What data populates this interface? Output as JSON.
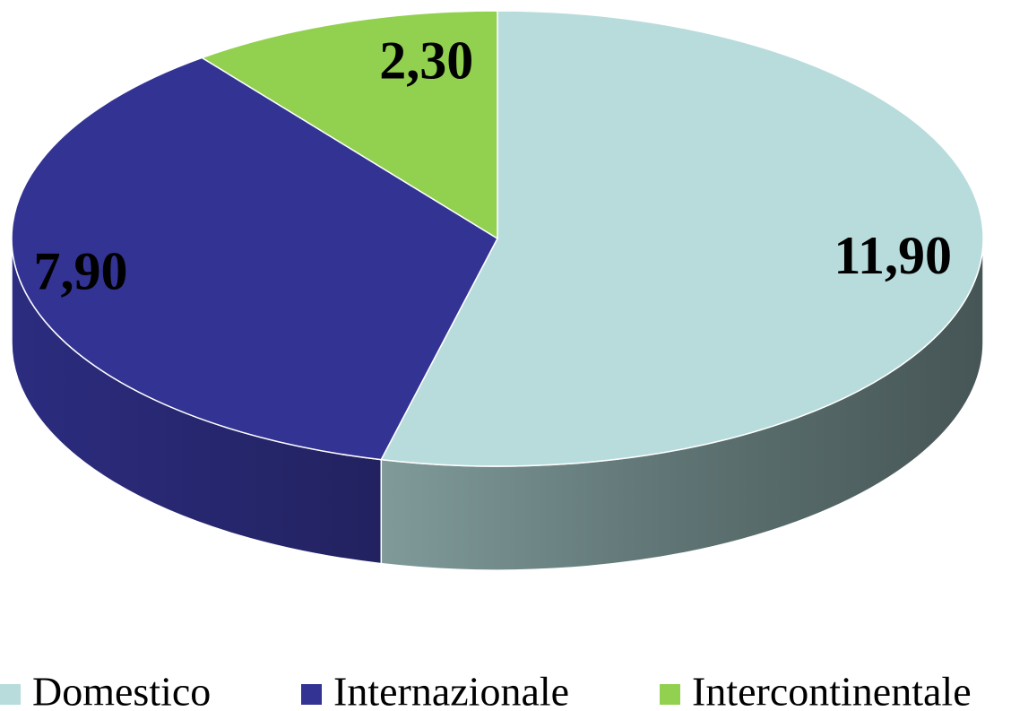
{
  "chart_data": {
    "type": "pie",
    "categories": [
      "Domestico",
      "Internazionale",
      "Intercontinentale"
    ],
    "values": [
      11.9,
      7.9,
      2.3
    ],
    "value_labels": [
      "11,90",
      "7,90",
      "2,30"
    ],
    "colors": [
      "#b8dcdc",
      "#333394",
      "#92d050"
    ],
    "legend": "bottom"
  }
}
